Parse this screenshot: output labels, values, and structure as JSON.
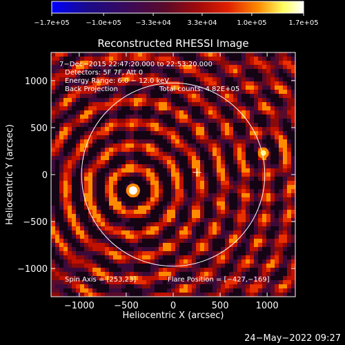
{
  "chart_data": {
    "type": "heatmap",
    "title": "Reconstructed RHESSI Image",
    "xlabel": "Heliocentric X (arcsec)",
    "ylabel": "Heliocentric Y (arcsec)",
    "xlim": [
      -1300,
      1300
    ],
    "ylim": [
      -1300,
      1300
    ],
    "x_ticks": [
      -1000,
      -500,
      0,
      500,
      1000
    ],
    "y_ticks": [
      -1000,
      -500,
      0,
      500,
      1000
    ],
    "x_tick_labels": [
      "−1000",
      "−500",
      "0",
      "500",
      "1000"
    ],
    "y_tick_labels": [
      "−1000",
      "−500",
      "0",
      "500",
      "1000"
    ],
    "colorbar": {
      "range": [
        -170000,
        170000
      ],
      "tick_labels": [
        "−1.7e+05",
        "−1.0e+05",
        "−3.3e+04",
        "3.3e+04",
        "1.0e+05",
        "1.7e+05"
      ],
      "colors": [
        "#0000ff",
        "#2a0a6e",
        "#3a0a3a",
        "#8a0a0a",
        "#e01a00",
        "#ff8a00",
        "#ffff80",
        "#ffffff"
      ]
    },
    "annotations": {
      "time_range": "7−Dec−2015 22:47:20.000 to 22:53:20.000",
      "detectors": "Detectors: 5F 7F, Att 0",
      "energy_range": "Energy Range: 6.0 − 12.0 keV",
      "method": "Back Projection",
      "total_counts": "Total counts: 4.82E+05",
      "spin_axis": "Spin Axis = [253,23]",
      "flare_position": "Flare Position = [−427,−169]"
    },
    "solar_limb_radius_arcsec": 975,
    "sun_center": [
      0,
      0
    ],
    "spin_axis_marker": [
      253,
      23
    ],
    "sources": [
      {
        "x": -427,
        "y": -169,
        "strength": 1.0
      },
      {
        "x": 960,
        "y": 230,
        "strength": 0.55
      }
    ]
  },
  "footer": {
    "date": "24−May−2022 09:27"
  }
}
